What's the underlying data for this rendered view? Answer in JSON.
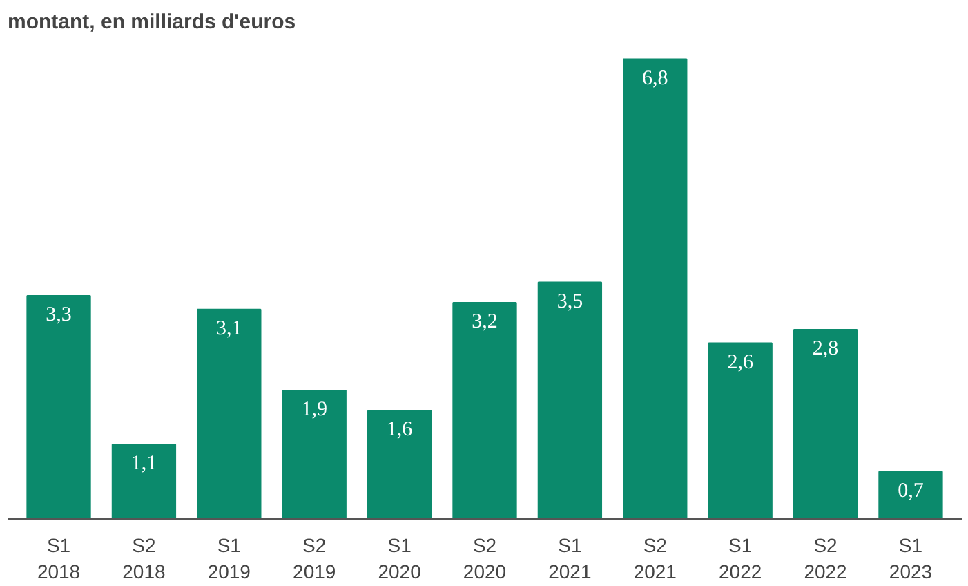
{
  "chart_data": {
    "type": "bar",
    "title": "montant, en milliards d'euros",
    "categories": [
      "S1\n2018",
      "S2\n2018",
      "S1\n2019",
      "S2\n2019",
      "S1\n2020",
      "S2\n2020",
      "S1\n2021",
      "S2\n2021",
      "S1\n2022",
      "S2\n2022",
      "S1\n2023"
    ],
    "values": [
      3.3,
      1.1,
      3.1,
      1.9,
      1.6,
      3.2,
      3.5,
      6.8,
      2.6,
      2.8,
      0.7
    ],
    "value_labels": [
      "3,3",
      "1,1",
      "3,1",
      "1,9",
      "1,6",
      "3,2",
      "3,5",
      "6,8",
      "2,6",
      "2,8",
      "0,7"
    ],
    "color": "#0b8a6c",
    "grid": false
  }
}
